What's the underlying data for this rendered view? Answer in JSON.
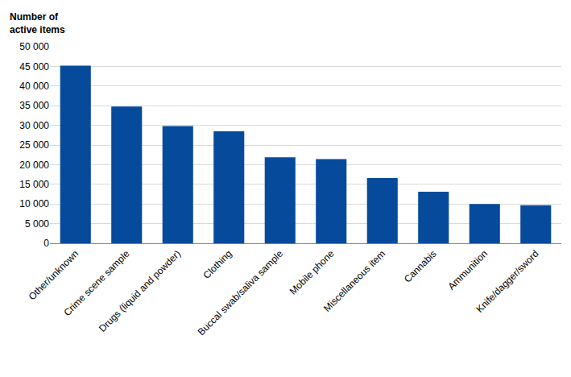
{
  "chart_data": {
    "type": "bar",
    "y_label": "Number of\nactive items",
    "categories": [
      "Other/unknown",
      "Crime scene sample",
      "Drugs (liquid and powder)",
      "Clothing",
      "Buccal swab/saliva sample",
      "Mobile phone",
      "Miscellaneous item",
      "Cannabis",
      "Ammunition",
      "Knife/dagger/sword"
    ],
    "values": [
      45200,
      34800,
      29800,
      28500,
      21900,
      21400,
      16600,
      13100,
      10000,
      9700
    ],
    "color": "#064a9c",
    "ylim": [
      0,
      50000
    ],
    "yticks": [
      0,
      {
        "value": 5000,
        "label": "5 000"
      },
      {
        "value": 10000,
        "label": "10 000"
      },
      {
        "value": 15000,
        "label": "15 000"
      },
      {
        "value": 20000,
        "label": "20 000"
      },
      {
        "value": 25000,
        "label": "25 000"
      },
      {
        "value": 30000,
        "label": "30 000"
      },
      {
        "value": 35000,
        "label": "35 000"
      },
      {
        "value": 40000,
        "label": "40 000"
      },
      {
        "value": 45000,
        "label": "45 000"
      },
      {
        "value": 50000,
        "label": "50 000"
      }
    ],
    "grid": true
  }
}
